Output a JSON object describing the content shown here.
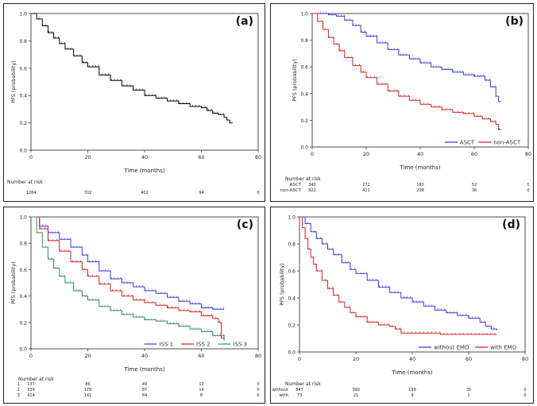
{
  "chart_data": [
    {
      "type": "line",
      "panel_label": "(a)",
      "title": "",
      "xlabel": "Time (months)",
      "ylabel": "PFS (probability)",
      "xlim": [
        0,
        80
      ],
      "ylim": [
        0,
        1.0
      ],
      "x_ticks": [
        "0",
        "20",
        "40",
        "60",
        "80"
      ],
      "y_ticks": [
        "0.0",
        "0.2",
        "0.4",
        "0.6",
        "0.8",
        "1.0"
      ],
      "series": [
        {
          "name": "All",
          "color": "#000000",
          "x": [
            0,
            2,
            4,
            6,
            8,
            10,
            12,
            15,
            18,
            20,
            24,
            28,
            32,
            36,
            40,
            44,
            48,
            52,
            56,
            60,
            62,
            64,
            66,
            68,
            69,
            70,
            71
          ],
          "y": [
            1.0,
            0.96,
            0.91,
            0.86,
            0.82,
            0.78,
            0.74,
            0.69,
            0.64,
            0.61,
            0.55,
            0.51,
            0.47,
            0.44,
            0.4,
            0.38,
            0.36,
            0.34,
            0.32,
            0.31,
            0.29,
            0.27,
            0.26,
            0.24,
            0.22,
            0.2,
            0.2
          ]
        }
      ],
      "legend": [],
      "at_risk": {
        "title": "Number at risk",
        "columns": [
          0,
          20,
          40,
          60,
          80
        ],
        "rows": [
          {
            "label": "",
            "values": [
              "1284",
              "702",
              "402",
              "94",
              "0"
            ]
          }
        ]
      }
    },
    {
      "type": "line",
      "panel_label": "(b)",
      "title": "",
      "xlabel": "Time (months)",
      "ylabel": "PFS (probability)",
      "xlim": [
        0,
        80
      ],
      "ylim": [
        0,
        1.0
      ],
      "x_ticks": [
        "0",
        "20",
        "40",
        "60",
        "80"
      ],
      "y_ticks": [
        "0.0",
        "0.2",
        "0.4",
        "0.6",
        "0.8",
        "1.0"
      ],
      "series": [
        {
          "name": "ASCT",
          "color": "#3a3adf",
          "x": [
            0,
            3,
            6,
            9,
            12,
            15,
            18,
            20,
            24,
            28,
            32,
            36,
            40,
            44,
            48,
            52,
            56,
            60,
            64,
            66,
            68,
            69,
            70
          ],
          "y": [
            1.0,
            1.0,
            0.99,
            0.98,
            0.95,
            0.91,
            0.86,
            0.83,
            0.78,
            0.73,
            0.69,
            0.66,
            0.63,
            0.6,
            0.58,
            0.56,
            0.54,
            0.53,
            0.5,
            0.45,
            0.38,
            0.34,
            0.34
          ]
        },
        {
          "name": "non-ASCT",
          "color": "#d22020",
          "x": [
            0,
            2,
            4,
            6,
            8,
            10,
            12,
            15,
            18,
            20,
            24,
            28,
            32,
            36,
            40,
            44,
            48,
            52,
            56,
            60,
            63,
            66,
            68,
            69,
            70
          ],
          "y": [
            1.0,
            0.94,
            0.88,
            0.82,
            0.77,
            0.72,
            0.67,
            0.61,
            0.56,
            0.52,
            0.47,
            0.42,
            0.38,
            0.35,
            0.32,
            0.3,
            0.28,
            0.26,
            0.25,
            0.23,
            0.21,
            0.19,
            0.17,
            0.13,
            0.13
          ]
        }
      ],
      "legend": [
        "ASCT",
        "non-ASCT"
      ],
      "at_risk": {
        "title": "Number at risk",
        "columns": [
          0,
          20,
          40,
          60,
          80
        ],
        "rows": [
          {
            "label": "ASCT",
            "values": [
              "340",
              "272",
              "180",
              "52",
              "0"
            ]
          },
          {
            "label": "non-ASCT",
            "values": [
              "922",
              "411",
              "208",
              "36",
              "0"
            ]
          }
        ]
      }
    },
    {
      "type": "line",
      "panel_label": "(c)",
      "title": "",
      "xlabel": "Time (months)",
      "ylabel": "PFS (probability)",
      "xlim": [
        0,
        80
      ],
      "ylim": [
        0,
        1.0
      ],
      "x_ticks": [
        "0",
        "20",
        "40",
        "60",
        "80"
      ],
      "y_ticks": [
        "0.0",
        "0.2",
        "0.4",
        "0.6",
        "0.8",
        "1.0"
      ],
      "series": [
        {
          "name": "ISS 1",
          "color": "#3a3adf",
          "x": [
            0,
            3,
            6,
            10,
            14,
            18,
            20,
            24,
            28,
            32,
            36,
            40,
            44,
            48,
            52,
            56,
            60,
            64,
            68
          ],
          "y": [
            1.0,
            0.93,
            0.88,
            0.83,
            0.77,
            0.71,
            0.66,
            0.59,
            0.53,
            0.5,
            0.47,
            0.44,
            0.42,
            0.39,
            0.36,
            0.34,
            0.31,
            0.3,
            0.3
          ]
        },
        {
          "name": "ISS 2",
          "color": "#d22020",
          "x": [
            0,
            3,
            6,
            10,
            14,
            18,
            20,
            24,
            28,
            32,
            36,
            40,
            44,
            48,
            52,
            56,
            60,
            64,
            66,
            67,
            68
          ],
          "y": [
            1.0,
            0.91,
            0.82,
            0.74,
            0.66,
            0.6,
            0.55,
            0.49,
            0.44,
            0.4,
            0.37,
            0.35,
            0.33,
            0.31,
            0.29,
            0.28,
            0.25,
            0.23,
            0.2,
            0.08,
            0.08
          ]
        },
        {
          "name": "ISS 3",
          "color": "#2e8b6a",
          "x": [
            0,
            2,
            4,
            6,
            8,
            10,
            12,
            15,
            18,
            20,
            24,
            28,
            32,
            36,
            40,
            44,
            48,
            52,
            56,
            60,
            64,
            68
          ],
          "y": [
            1.0,
            0.88,
            0.77,
            0.68,
            0.61,
            0.55,
            0.5,
            0.44,
            0.4,
            0.37,
            0.32,
            0.29,
            0.26,
            0.24,
            0.22,
            0.21,
            0.19,
            0.17,
            0.15,
            0.13,
            0.1,
            0.06
          ]
        }
      ],
      "legend": [
        "ISS 1",
        "ISS 2",
        "ISS 3"
      ],
      "at_risk": {
        "title": "Number at risk",
        "columns": [
          0,
          20,
          40,
          60,
          80
        ],
        "rows": [
          {
            "label": "1",
            "values": [
              "137",
              "86",
              "49",
              "12",
              "0"
            ]
          },
          {
            "label": "2",
            "values": [
              "339",
              "178",
              "87",
              "14",
              "0"
            ]
          },
          {
            "label": "3",
            "values": [
              "414",
              "141",
              "64",
              "8",
              "0"
            ]
          }
        ]
      }
    },
    {
      "type": "line",
      "panel_label": "(d)",
      "title": "",
      "xlabel": "Time (months)",
      "ylabel": "PFS (probability)",
      "xlim": [
        0,
        80
      ],
      "ylim": [
        0,
        1.0
      ],
      "x_ticks": [
        "0",
        "20",
        "40",
        "60",
        "80"
      ],
      "y_ticks": [
        "0.0",
        "0.2",
        "0.4",
        "0.6",
        "0.8",
        "1.0"
      ],
      "series": [
        {
          "name": "without EMD",
          "color": "#3a3adf",
          "x": [
            0,
            2,
            4,
            6,
            8,
            10,
            12,
            15,
            18,
            20,
            24,
            28,
            32,
            36,
            40,
            44,
            48,
            52,
            56,
            60,
            64,
            66,
            68,
            70
          ],
          "y": [
            1.0,
            0.95,
            0.89,
            0.84,
            0.8,
            0.76,
            0.72,
            0.66,
            0.61,
            0.58,
            0.53,
            0.48,
            0.44,
            0.4,
            0.37,
            0.34,
            0.31,
            0.29,
            0.27,
            0.25,
            0.22,
            0.19,
            0.17,
            0.16
          ]
        },
        {
          "name": "with EMD",
          "color": "#d22020",
          "x": [
            0,
            1,
            2,
            3,
            4,
            5,
            6,
            8,
            10,
            12,
            14,
            16,
            18,
            20,
            24,
            28,
            32,
            34,
            36,
            44,
            48,
            50,
            60,
            66,
            70
          ],
          "y": [
            1.0,
            0.92,
            0.84,
            0.76,
            0.7,
            0.65,
            0.6,
            0.53,
            0.47,
            0.42,
            0.37,
            0.33,
            0.29,
            0.26,
            0.22,
            0.2,
            0.19,
            0.17,
            0.14,
            0.14,
            0.14,
            0.13,
            0.13,
            0.13,
            0.13
          ]
        }
      ],
      "legend": [
        "without EMD",
        "with EMD"
      ],
      "at_risk": {
        "title": "Number at risk",
        "columns": [
          0,
          20,
          40,
          60,
          80
        ],
        "rows": [
          {
            "label": "without",
            "values": [
              "847",
              "390",
              "199",
              "35",
              "0"
            ]
          },
          {
            "label": "with",
            "values": [
              "73",
              "21",
              "9",
              "1",
              "0"
            ]
          }
        ]
      }
    }
  ]
}
